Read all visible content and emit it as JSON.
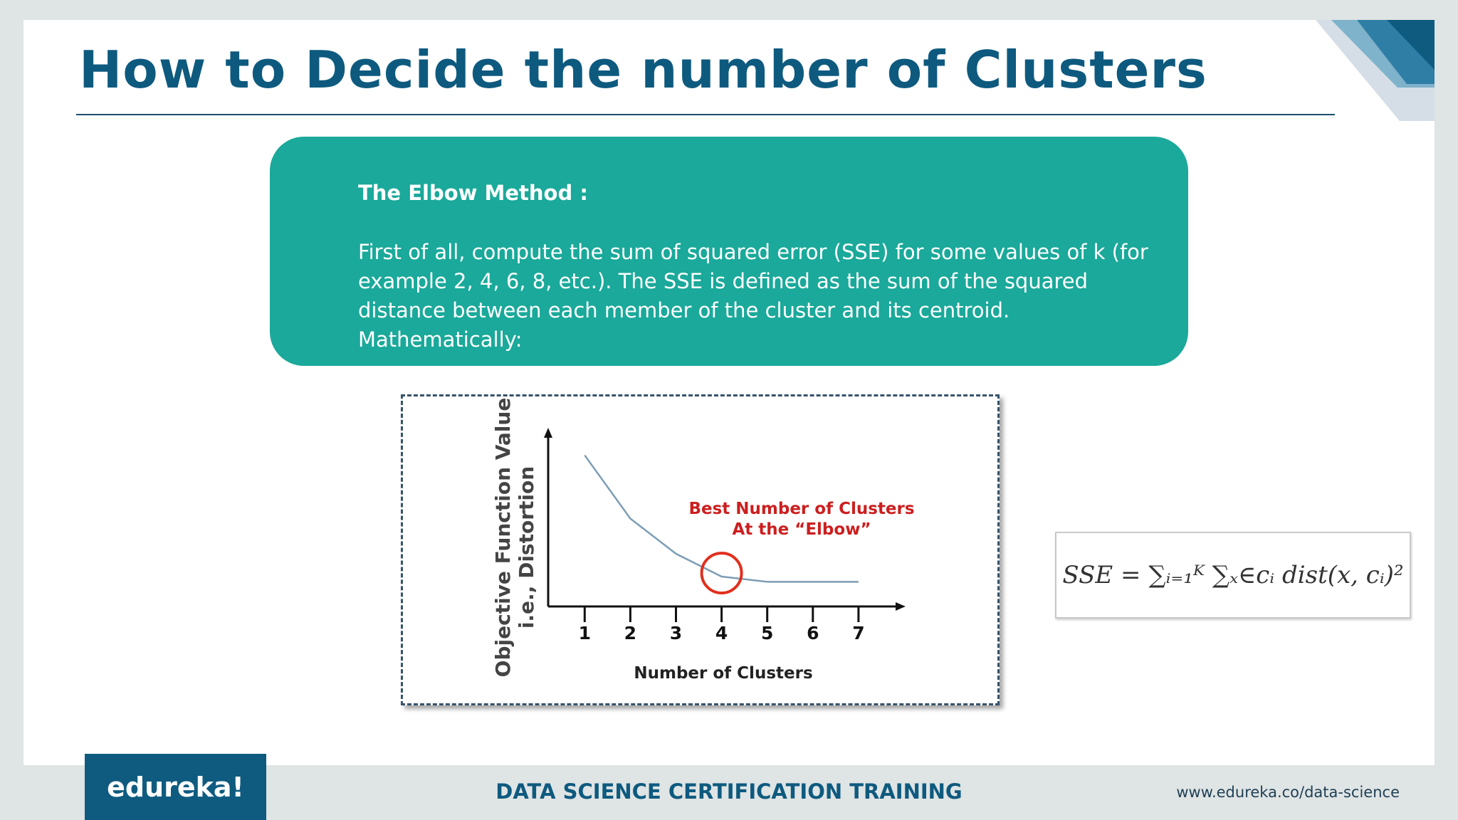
{
  "slide": {
    "title": "How to Decide the number of Clusters"
  },
  "info_box": {
    "heading": "The Elbow Method :",
    "body": "First of all, compute the sum of squared error (SSE) for some values of k (for example 2, 4, 6, 8, etc.). The SSE is defined as the sum of the squared distance between each member of the cluster and its centroid. Mathematically:"
  },
  "chart_data": {
    "type": "line",
    "title": "",
    "xlabel": "Number of Clusters",
    "ylabel": "Objective Function Value",
    "ylabel_secondary": "i.e., Distortion",
    "x": [
      1,
      2,
      3,
      4,
      5,
      6,
      7
    ],
    "x_tick_labels": [
      "1",
      "2",
      "3",
      "4",
      "5",
      "6",
      "7"
    ],
    "series": [
      {
        "values": [
          0.86,
          0.5,
          0.3,
          0.17,
          0.14,
          0.14,
          0.14
        ],
        "color": "#7d9db6"
      }
    ],
    "xlim": [
      0.2,
      8.0
    ],
    "ylim": [
      0,
      1
    ],
    "y_ticks_shown": false,
    "grid": false,
    "annotation": {
      "lines": [
        "Best Number of Clusters",
        "At the “Elbow”"
      ],
      "color": "#cc1f1f",
      "marker_x": 4,
      "marker_y": 0.19,
      "marker_color": "#e0301e"
    }
  },
  "formula": {
    "text": "SSE = ∑ᵢ₌₁ᴷ ∑ₓ∈cᵢ dist(x, cᵢ)²"
  },
  "footer": {
    "logo_text": "edureka!",
    "center_text": "DATA SCIENCE CERTIFICATION TRAINING",
    "url": "www.edureka.co/data-science"
  },
  "colors": {
    "title": "#0e5a7f",
    "box": "#1aa99a",
    "footer_logo_bg": "#0f5b80",
    "background": "#dfe4e4"
  }
}
